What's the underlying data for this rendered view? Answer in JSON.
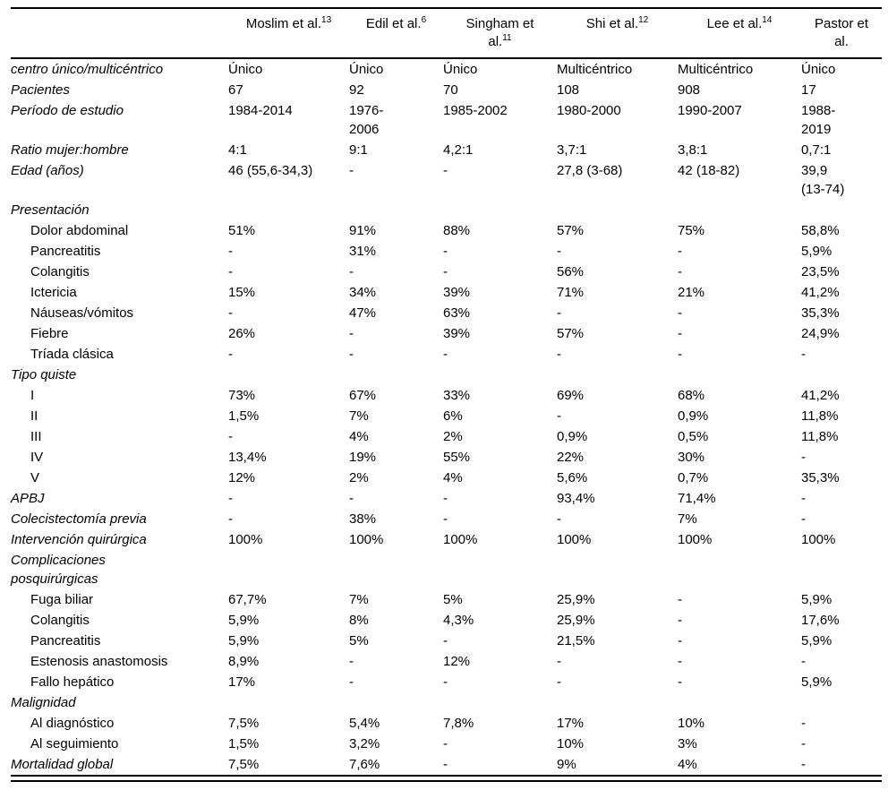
{
  "colors": {
    "text": "#000000",
    "rule": "#000000",
    "background": "#ffffff"
  },
  "table": {
    "columns": [
      {
        "label": "Moslim et al.",
        "sup": "13"
      },
      {
        "label": "Edil et al.",
        "sup": "6"
      },
      {
        "label": "Singham et al.",
        "sup": "11"
      },
      {
        "label": "Shi et al.",
        "sup": "12"
      },
      {
        "label": "Lee et al.",
        "sup": "14"
      },
      {
        "label": "Pastor et al.",
        "sup": ""
      }
    ],
    "rows": [
      {
        "label": "centro único/multicéntrico",
        "style": "category",
        "cells": [
          "Único",
          "Único",
          "Único",
          "Multicéntrico",
          "Multicéntrico",
          "Único"
        ]
      },
      {
        "label": "Pacientes",
        "style": "category",
        "cells": [
          "67",
          "92",
          "70",
          "108",
          "908",
          "17"
        ]
      },
      {
        "label": "Período de estudio",
        "style": "category",
        "cells": [
          "1984-2014",
          "1976-2006",
          "1985-2002",
          "1980-2000",
          "1990-2007",
          "1988-2019"
        ]
      },
      {
        "label": "Ratio mujer:hombre",
        "style": "category",
        "cells": [
          "4:1",
          "9:1",
          "4,2:1",
          "3,7:1",
          "3,8:1",
          "0,7:1"
        ]
      },
      {
        "label": "Edad (años)",
        "style": "category",
        "cells": [
          "46 (55,6-34,3)",
          "-",
          "-",
          "27,8 (3-68)",
          "42 (18-82)",
          "39,9 (13-74)"
        ]
      },
      {
        "label": "Presentación",
        "style": "category",
        "cells": [
          "",
          "",
          "",
          "",
          "",
          ""
        ]
      },
      {
        "label": "Dolor abdominal",
        "style": "sub",
        "cells": [
          "51%",
          "91%",
          "88%",
          "57%",
          "75%",
          "58,8%"
        ]
      },
      {
        "label": "Pancreatitis",
        "style": "sub",
        "cells": [
          "-",
          "31%",
          "-",
          "-",
          "-",
          "5,9%"
        ]
      },
      {
        "label": "Colangitis",
        "style": "sub",
        "cells": [
          "-",
          "-",
          "-",
          "56%",
          "-",
          "23,5%"
        ]
      },
      {
        "label": "Ictericia",
        "style": "sub",
        "cells": [
          "15%",
          "34%",
          "39%",
          "71%",
          "21%",
          "41,2%"
        ]
      },
      {
        "label": "Náuseas/vómitos",
        "style": "sub",
        "cells": [
          "-",
          "47%",
          "63%",
          "-",
          "-",
          "35,3%"
        ]
      },
      {
        "label": "Fiebre",
        "style": "sub",
        "cells": [
          "26%",
          "-",
          "39%",
          "57%",
          "-",
          "24,9%"
        ]
      },
      {
        "label": "Tríada clásica",
        "style": "sub",
        "cells": [
          "-",
          "-",
          "-",
          "-",
          "-",
          "-"
        ]
      },
      {
        "label": "Tipo quiste",
        "style": "category",
        "cells": [
          "",
          "",
          "",
          "",
          "",
          ""
        ]
      },
      {
        "label": "I",
        "style": "sub",
        "cells": [
          "73%",
          "67%",
          "33%",
          "69%",
          "68%",
          "41,2%"
        ]
      },
      {
        "label": "II",
        "style": "sub",
        "cells": [
          "1,5%",
          "7%",
          "6%",
          "-",
          "0,9%",
          "11,8%"
        ]
      },
      {
        "label": "III",
        "style": "sub",
        "cells": [
          "-",
          "4%",
          "2%",
          "0,9%",
          "0,5%",
          "11,8%"
        ]
      },
      {
        "label": "IV",
        "style": "sub",
        "cells": [
          "13,4%",
          "19%",
          "55%",
          "22%",
          "30%",
          "-"
        ]
      },
      {
        "label": "V",
        "style": "sub",
        "cells": [
          "12%",
          "2%",
          "4%",
          "5,6%",
          "0,7%",
          "35,3%"
        ]
      },
      {
        "label": "APBJ",
        "style": "category",
        "cells": [
          "-",
          "-",
          "-",
          "93,4%",
          "71,4%",
          "-"
        ]
      },
      {
        "label": "Colecistectomía previa",
        "style": "category",
        "cells": [
          "-",
          "38%",
          "-",
          "-",
          "7%",
          "-"
        ]
      },
      {
        "label": "Intervención quirúrgica",
        "style": "category",
        "cells": [
          "100%",
          "100%",
          "100%",
          "100%",
          "100%",
          "100%"
        ]
      },
      {
        "label": "Complicaciones posquirúrgicas",
        "style": "category",
        "cells": [
          "",
          "",
          "",
          "",
          "",
          ""
        ]
      },
      {
        "label": "Fuga biliar",
        "style": "sub",
        "cells": [
          "67,7%",
          "7%",
          "5%",
          "25,9%",
          "-",
          "5,9%"
        ]
      },
      {
        "label": "Colangitis",
        "style": "sub",
        "cells": [
          "5,9%",
          "8%",
          "4,3%",
          "25,9%",
          "-",
          "17,6%"
        ]
      },
      {
        "label": "Pancreatitis",
        "style": "sub",
        "cells": [
          "5,9%",
          "5%",
          "-",
          "21,5%",
          "-",
          "5,9%"
        ]
      },
      {
        "label": "Estenosis anastomosis",
        "style": "sub",
        "cells": [
          "8,9%",
          "-",
          "12%",
          "-",
          "-",
          "-"
        ]
      },
      {
        "label": "Fallo hepático",
        "style": "sub",
        "cells": [
          "17%",
          "-",
          "-",
          "-",
          "-",
          "5,9%"
        ]
      },
      {
        "label": "Malignidad",
        "style": "category",
        "cells": [
          "",
          "",
          "",
          "",
          "",
          ""
        ]
      },
      {
        "label": "Al diagnóstico",
        "style": "sub",
        "cells": [
          "7,5%",
          "5,4%",
          "7,8%",
          "17%",
          "10%",
          "-"
        ]
      },
      {
        "label": "Al seguimiento",
        "style": "sub",
        "cells": [
          "1,5%",
          "3,2%",
          "-",
          "10%",
          "3%",
          "-"
        ]
      },
      {
        "label": "Mortalidad global",
        "style": "category",
        "cells": [
          "7,5%",
          "7,6%",
          "-",
          "9%",
          "4%",
          "-"
        ]
      }
    ]
  }
}
